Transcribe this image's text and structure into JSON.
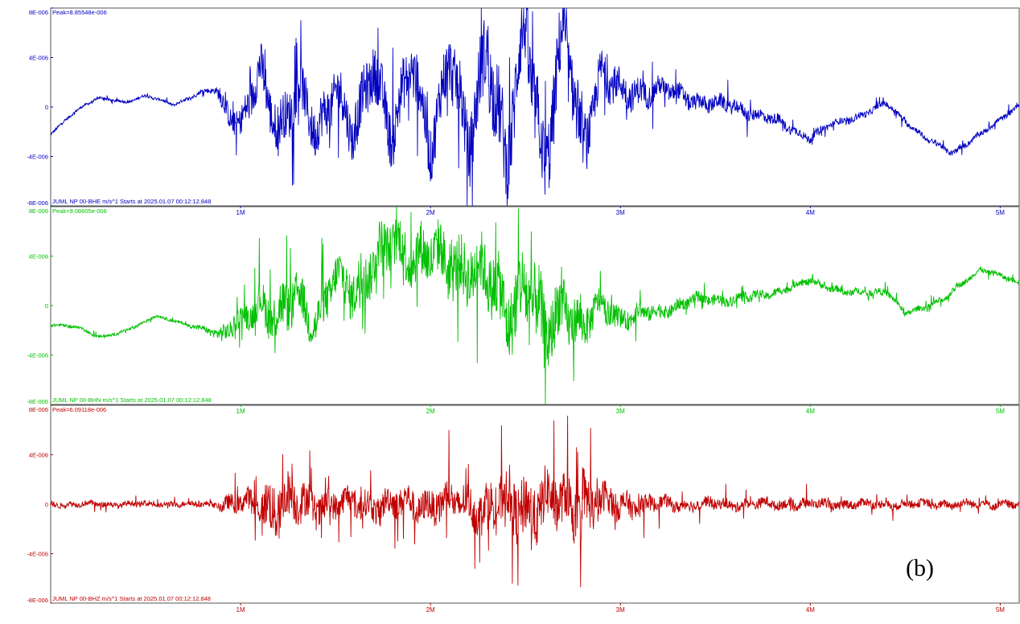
{
  "figure_label": "(b)",
  "chart_data": [
    {
      "type": "line",
      "peak_label": "Peak=8.85548e-006",
      "caption": "JUML NP 00-BHE  m/s^1 Starts at 2025.01.07 00:12:12.848",
      "color": "#0000c0",
      "ylim": [
        -8e-06,
        8e-06
      ],
      "y_ticks": [
        8e-06,
        4e-06,
        0,
        -4e-06,
        -8e-06
      ],
      "y_tick_labels": [
        "8E-006",
        "4E-006",
        "0",
        "-4E-006",
        "-8E-006"
      ],
      "xlim": [
        0,
        5.1
      ],
      "x_ticks": [
        1,
        2,
        3,
        4,
        5
      ],
      "x_tick_labels": [
        "1M",
        "2M",
        "3M",
        "4M",
        "5M"
      ],
      "grid": false,
      "series": [
        {
          "x": [
            0,
            0.13,
            0.25,
            0.4,
            0.5,
            0.65,
            0.8,
            0.87,
            0.9,
            1.0,
            1.1,
            1.2,
            1.3,
            1.4,
            1.5,
            1.6,
            1.7,
            1.8,
            1.9,
            2.0,
            2.1,
            2.2,
            2.3,
            2.4,
            2.5,
            2.6,
            2.7,
            2.8,
            2.9,
            3.0,
            3.2,
            3.4,
            3.6,
            3.8,
            4.0,
            4.1,
            4.3,
            4.4,
            4.6,
            4.75,
            4.9,
            5.1
          ],
          "y": [
            -2.2e-06,
            -3e-07,
            7e-07,
            4e-07,
            9e-07,
            2e-07,
            1.2e-06,
            1.4e-06,
            5e-07,
            -1.5e-06,
            2.5e-06,
            -1.5e-06,
            1.5e-06,
            -2.5e-06,
            2.2e-06,
            -2.8e-06,
            3.5e-06,
            -2e-06,
            3.2e-06,
            -3e-06,
            4.5e-06,
            -4e-06,
            6e-06,
            -5e-06,
            6.5e-06,
            -4.5e-06,
            5.5e-06,
            -3e-06,
            3e-06,
            1e-06,
            1.5e-06,
            5e-07,
            0.0,
            -1e-06,
            -2.5e-06,
            -1.5e-06,
            -5e-07,
            3e-07,
            -2.5e-06,
            -3.7e-06,
            -2.2e-06,
            2e-07
          ],
          "env": [
            2e-07,
            2e-07,
            2e-07,
            2e-07,
            2e-07,
            2e-07,
            3e-07,
            5e-07,
            1.5e-06,
            2e-06,
            3.5e-06,
            3.5e-06,
            3.5e-06,
            3.5e-06,
            3.5e-06,
            3.5e-06,
            4e-06,
            4e-06,
            4e-06,
            4e-06,
            4.5e-06,
            5e-06,
            6e-06,
            6e-06,
            6e-06,
            6e-06,
            5.5e-06,
            4e-06,
            3e-06,
            2.5e-06,
            1.5e-06,
            1.2e-06,
            1e-06,
            8e-07,
            6e-07,
            5e-07,
            5e-07,
            4e-07,
            4e-07,
            4e-07,
            4e-07,
            4e-07
          ]
        }
      ]
    },
    {
      "type": "line",
      "peak_label": "Peak=9.08605e-006",
      "caption": "JUML NP 00-BHN  m/s^1 Starts at 2025.01.07 00:12:12.848",
      "color": "#00c000",
      "ylim": [
        -8e-06,
        8e-06
      ],
      "y_ticks": [
        8e-06,
        4e-06,
        0,
        -4e-06,
        -8e-06
      ],
      "y_tick_labels": [
        "8E-006",
        "4E-006",
        "0",
        "-4E-006",
        "-8E-006"
      ],
      "xlim": [
        0,
        5.1
      ],
      "x_ticks": [
        1,
        2,
        3,
        4,
        5
      ],
      "x_tick_labels": [
        "1M",
        "2M",
        "3M",
        "4M",
        "5M"
      ],
      "grid": false,
      "series": [
        {
          "x": [
            0,
            0.15,
            0.25,
            0.35,
            0.45,
            0.55,
            0.7,
            0.85,
            0.9,
            1.0,
            1.1,
            1.2,
            1.3,
            1.4,
            1.5,
            1.6,
            1.7,
            1.8,
            1.9,
            2.0,
            2.1,
            2.2,
            2.3,
            2.4,
            2.5,
            2.6,
            2.7,
            2.8,
            2.9,
            3.0,
            3.2,
            3.4,
            3.6,
            3.8,
            4.0,
            4.2,
            4.4,
            4.5,
            4.7,
            4.9,
            5.1
          ],
          "y": [
            -1.5e-06,
            -1.8e-06,
            -2.5e-06,
            -2.3e-06,
            -1.7e-06,
            -8e-07,
            -1.5e-06,
            -2e-06,
            -2.6e-06,
            -1.2e-06,
            5e-07,
            -1.5e-06,
            1.2e-06,
            -1.5e-06,
            2e-06,
            1.5e-06,
            3.5e-06,
            5e-06,
            4.5e-06,
            4e-06,
            3e-06,
            3.5e-06,
            2e-06,
            -5e-07,
            2e-06,
            -3e-06,
            5e-07,
            -2e-06,
            0.0,
            -1e-06,
            -5e-07,
            5e-07,
            5e-07,
            1e-06,
            2e-06,
            1e-06,
            1.2e-06,
            -7e-07,
            5e-07,
            3e-06,
            1.8e-06
          ],
          "env": [
            2e-07,
            2e-07,
            2e-07,
            2e-07,
            2e-07,
            2e-07,
            2e-07,
            5e-07,
            1.2e-06,
            1.5e-06,
            2.5e-06,
            4e-06,
            3e-06,
            3e-06,
            3e-06,
            3.5e-06,
            3.5e-06,
            3.5e-06,
            4e-06,
            4e-06,
            4e-06,
            4.5e-06,
            4.5e-06,
            5e-06,
            6e-06,
            5.5e-06,
            4e-06,
            3e-06,
            2e-06,
            1.5e-06,
            1e-06,
            8e-07,
            7e-07,
            6e-07,
            5e-07,
            5e-07,
            5e-07,
            4e-07,
            4e-07,
            4e-07,
            4e-07
          ]
        }
      ]
    },
    {
      "type": "line",
      "peak_label": "Peak=6.09118e-006",
      "caption": "JUML NP 00-BHZ  m/s^1 Starts at 2025.01.07 00:12:12.848",
      "color": "#c00000",
      "ylim": [
        -8e-06,
        8e-06
      ],
      "y_ticks": [
        8e-06,
        4e-06,
        0,
        -4e-06,
        -8e-06
      ],
      "y_tick_labels": [
        "8E-006",
        "4E-006",
        "0",
        "-4E-006",
        "-8E-006"
      ],
      "xlim": [
        0,
        5.1
      ],
      "x_ticks": [
        1,
        2,
        3,
        4,
        5
      ],
      "x_tick_labels": [
        "1M",
        "2M",
        "3M",
        "4M",
        "5M"
      ],
      "grid": false,
      "series": [
        {
          "x": [
            0,
            0.5,
            0.88,
            0.9,
            1.0,
            1.1,
            1.15,
            1.3,
            1.5,
            1.7,
            1.9,
            2.1,
            2.3,
            2.4,
            2.5,
            2.6,
            2.7,
            2.8,
            2.9,
            3.0,
            3.2,
            3.5,
            4.0,
            4.5,
            5.1
          ],
          "y": [
            0,
            0,
            0,
            0,
            0,
            0,
            0,
            0,
            0,
            0,
            0,
            0,
            0,
            0,
            0,
            0,
            0,
            0,
            0,
            0,
            0,
            0,
            0,
            0,
            0
          ],
          "env": [
            4e-07,
            4e-07,
            4e-07,
            1e-06,
            1.5e-06,
            2e-06,
            4e-06,
            3e-06,
            2e-06,
            2e-06,
            2.2e-06,
            2.5e-06,
            3e-06,
            4e-06,
            4.5e-06,
            4e-06,
            3.5e-06,
            4.5e-06,
            2.5e-06,
            2e-06,
            1e-06,
            8e-07,
            7e-07,
            6e-07,
            6e-07
          ]
        }
      ]
    }
  ]
}
